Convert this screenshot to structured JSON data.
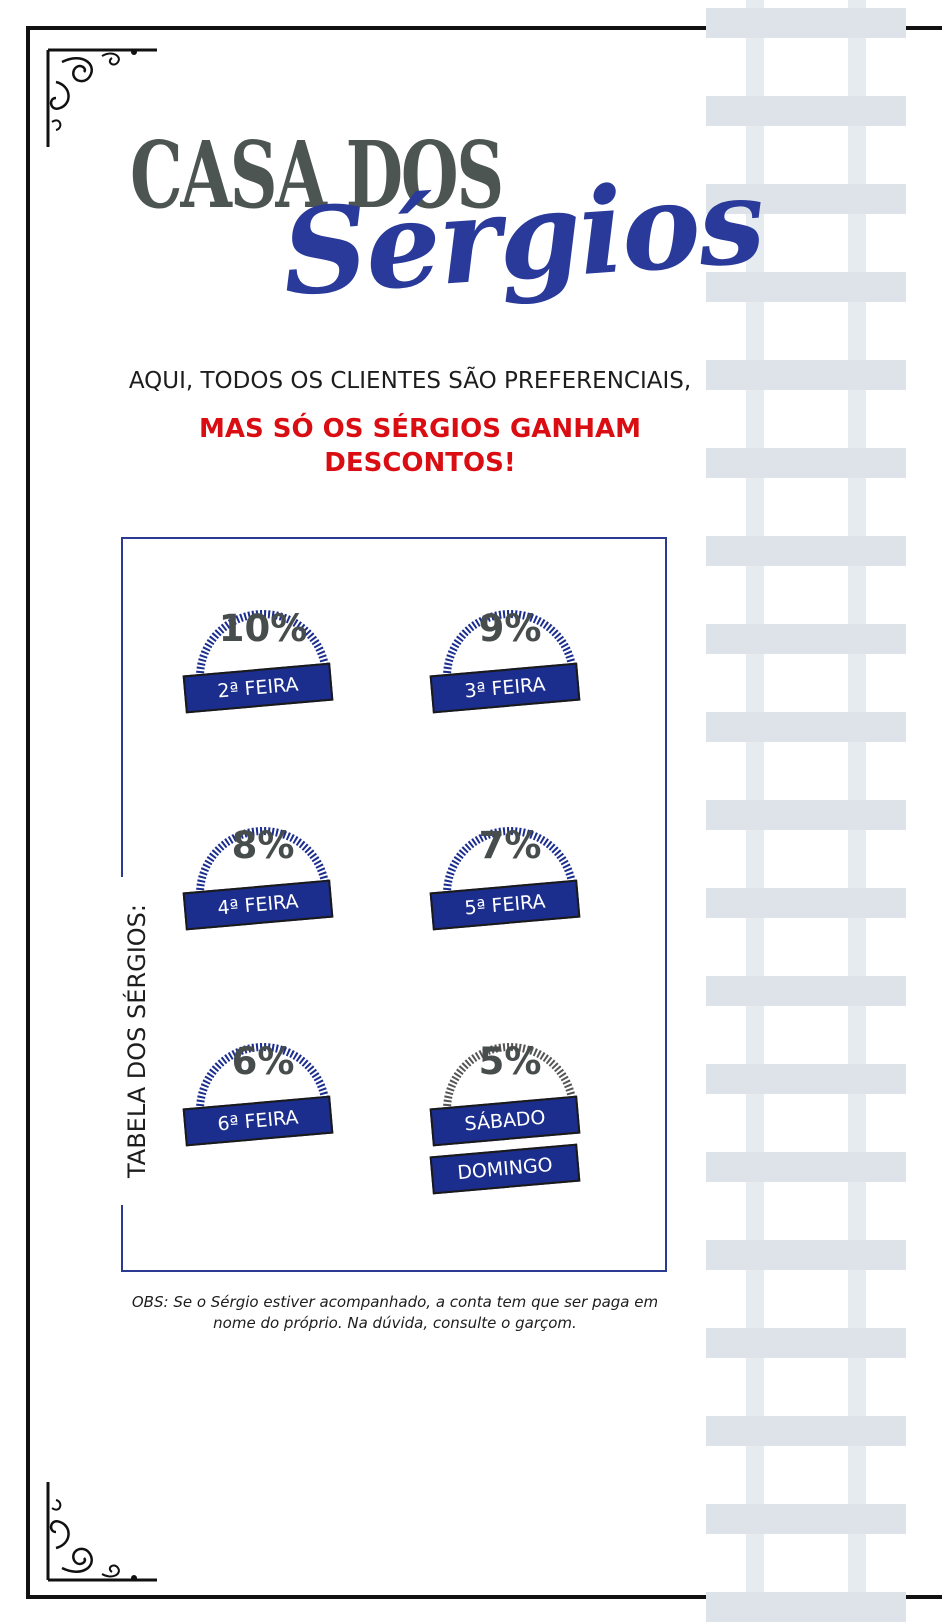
{
  "brand": {
    "line1": "CASA DOS",
    "line2": "Sérgios"
  },
  "tagline": "AQUI, TODOS OS CLIENTES SÃO PREFERENCIAIS,",
  "promo": "MAS SÓ OS SÉRGIOS GANHAM DESCONTOS!",
  "table_label": "TABELA DOS SÉRGIOS:",
  "discounts": [
    {
      "percent": "10%",
      "day": "2ª FEIRA"
    },
    {
      "percent": "9%",
      "day": "3ª FEIRA"
    },
    {
      "percent": "8%",
      "day": "4ª FEIRA"
    },
    {
      "percent": "7%",
      "day": "5ª FEIRA"
    },
    {
      "percent": "6%",
      "day": "6ª FEIRA"
    },
    {
      "percent": "5%",
      "day": "SÁBADO",
      "day2": "DOMINGO"
    }
  ],
  "note": "OBS: Se o Sérgio estiver acompanhado, a conta tem que ser paga em nome do próprio. Na dúvida, consulte o garçom.",
  "colors": {
    "blue": "#1b2d8d",
    "red": "#d90d12",
    "gray": "#4d5553",
    "weekend_ring": "#555555"
  }
}
